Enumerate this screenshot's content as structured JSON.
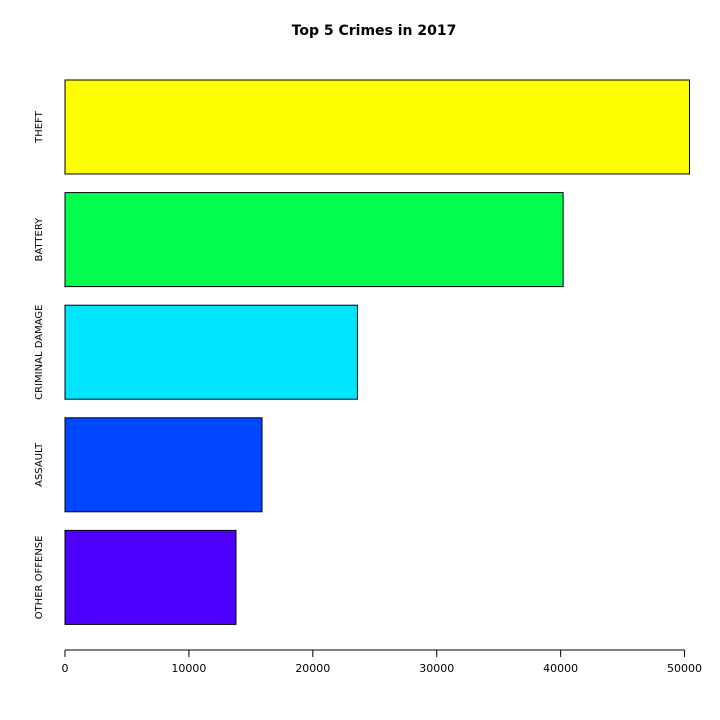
{
  "chart_data": {
    "type": "bar",
    "orientation": "horizontal",
    "title": "Top 5 Crimes in 2017",
    "xlabel": "",
    "ylabel": "",
    "categories": [
      "THEFT",
      "BATTERY",
      "CRIMINAL DAMAGE",
      "ASSAULT",
      "OTHER OFFENSE"
    ],
    "values": [
      50400,
      40200,
      23600,
      15900,
      13800
    ],
    "colors": [
      "#FFFF00",
      "#00FF4D",
      "#00E5FF",
      "#0047FF",
      "#4D00FF"
    ],
    "xlim": [
      0,
      50400
    ],
    "xticks": [
      0,
      10000,
      20000,
      30000,
      40000,
      50000
    ],
    "grid": false,
    "legend": "none"
  }
}
